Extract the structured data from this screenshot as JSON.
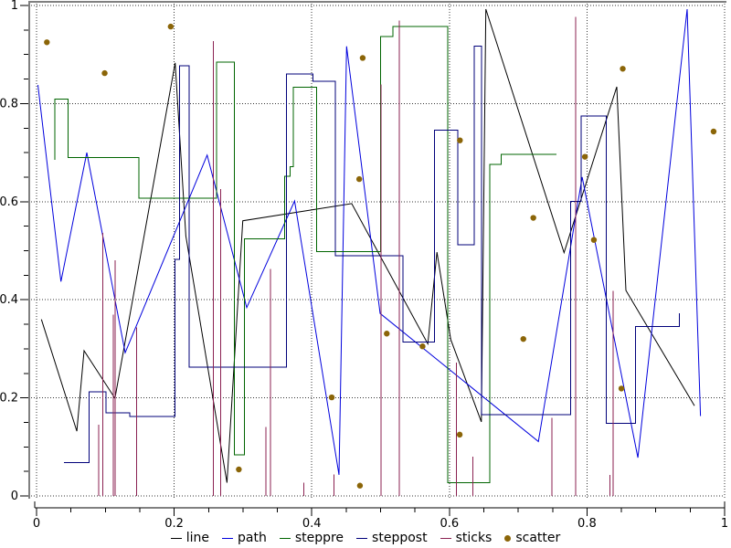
{
  "chart_data": {
    "type": "line",
    "title": "",
    "xlabel": "",
    "ylabel": "",
    "xlim": [
      0,
      1
    ],
    "ylim": [
      0,
      1
    ],
    "grid": "dotted",
    "legend_position": "bottom-center",
    "x_ticks": {
      "values": [
        0,
        0.2,
        0.4,
        0.6,
        0.8,
        1
      ],
      "labels": [
        "0",
        "0.2",
        "0.4",
        "0.6",
        "0.8",
        "1"
      ],
      "minor_step": 0.05
    },
    "y_ticks": {
      "values": [
        0,
        0.2,
        0.4,
        0.6,
        0.8,
        1
      ],
      "labels": [
        "0",
        "0.2",
        "0.4",
        "0.6",
        "0.8",
        "1"
      ],
      "minor_step": 0.05
    },
    "colors": {
      "plot_background": "#ffffff",
      "frame": "#808080",
      "grid": "#333333",
      "axis": "#000000",
      "tick_label": "#000000"
    },
    "series": [
      {
        "name": "line",
        "style": "line",
        "color": "#000000",
        "points": [
          [
            0.007,
            0.36
          ],
          [
            0.0585,
            0.132
          ],
          [
            0.069,
            0.296
          ],
          [
            0.114,
            0.199
          ],
          [
            0.2014,
            0.883
          ],
          [
            0.217,
            0.53
          ],
          [
            0.2767,
            0.027
          ],
          [
            0.2997,
            0.561
          ],
          [
            0.458,
            0.596
          ],
          [
            0.5687,
            0.31
          ],
          [
            0.582,
            0.497
          ],
          [
            0.602,
            0.319
          ],
          [
            0.6465,
            0.151
          ],
          [
            0.653,
            0.9925
          ],
          [
            0.7667,
            0.496
          ],
          [
            0.8433,
            0.8343
          ],
          [
            0.8566,
            0.419
          ],
          [
            0.9562,
            0.184
          ]
        ]
      },
      {
        "name": "path",
        "style": "path",
        "color": "#0000dd",
        "points": [
          [
            0.002,
            0.838
          ],
          [
            0.0355,
            0.437
          ],
          [
            0.073,
            0.7
          ],
          [
            0.1288,
            0.292
          ],
          [
            0.248,
            0.695
          ],
          [
            0.3054,
            0.384
          ],
          [
            0.375,
            0.6015
          ],
          [
            0.4396,
            0.043
          ],
          [
            0.4506,
            0.9167
          ],
          [
            0.4993,
            0.372
          ],
          [
            0.7294,
            0.111
          ],
          [
            0.793,
            0.65
          ],
          [
            0.874,
            0.078
          ],
          [
            0.9456,
            0.9925
          ],
          [
            0.965,
            0.163
          ]
        ]
      },
      {
        "name": "steppre",
        "style": "steppre",
        "color": "#006400",
        "points": [
          [
            0.0266,
            0.685
          ],
          [
            0.0461,
            0.809
          ],
          [
            0.1487,
            0.69
          ],
          [
            0.2616,
            0.607
          ],
          [
            0.2877,
            0.885
          ],
          [
            0.3024,
            0.084
          ],
          [
            0.3608,
            0.524
          ],
          [
            0.3682,
            0.652
          ],
          [
            0.3735,
            0.671
          ],
          [
            0.4072,
            0.833
          ],
          [
            0.5002,
            0.498
          ],
          [
            0.518,
            0.937
          ],
          [
            0.5976,
            0.957
          ],
          [
            0.6587,
            0.027
          ],
          [
            0.675,
            0.676
          ],
          [
            0.7556,
            0.696
          ]
        ]
      },
      {
        "name": "steppost",
        "style": "steppost",
        "color": "#00007a",
        "points": [
          [
            0.0398,
            0.0676
          ],
          [
            0.0765,
            0.2123
          ],
          [
            0.101,
            0.1695
          ],
          [
            0.1354,
            0.162
          ],
          [
            0.2014,
            0.482
          ],
          [
            0.208,
            0.877
          ],
          [
            0.2215,
            0.263
          ],
          [
            0.3631,
            0.86
          ],
          [
            0.4015,
            0.845
          ],
          [
            0.4343,
            0.49
          ],
          [
            0.5325,
            0.314
          ],
          [
            0.5786,
            0.746
          ],
          [
            0.6122,
            0.512
          ],
          [
            0.636,
            0.917
          ],
          [
            0.6465,
            0.166
          ],
          [
            0.776,
            0.601
          ],
          [
            0.7915,
            0.775
          ],
          [
            0.8278,
            0.148
          ],
          [
            0.8707,
            0.345
          ],
          [
            0.934,
            0.372
          ]
        ]
      },
      {
        "name": "sticks",
        "style": "sticks",
        "color": "#8b2252",
        "points": [
          [
            0.09,
            0.145
          ],
          [
            0.0965,
            0.536
          ],
          [
            0.1116,
            0.37
          ],
          [
            0.1142,
            0.48
          ],
          [
            0.1451,
            0.344
          ],
          [
            0.2567,
            0.927
          ],
          [
            0.2678,
            0.626
          ],
          [
            0.3333,
            0.141
          ],
          [
            0.34,
            0.463
          ],
          [
            0.3887,
            0.027
          ],
          [
            0.4325,
            0.044
          ],
          [
            0.5005,
            0.839
          ],
          [
            0.527,
            0.969
          ],
          [
            0.61,
            0.272
          ],
          [
            0.634,
            0.08
          ],
          [
            0.749,
            0.159
          ],
          [
            0.7835,
            0.977
          ],
          [
            0.8336,
            0.043
          ],
          [
            0.838,
            0.418
          ]
        ]
      },
      {
        "name": "scatter",
        "style": "scatter",
        "color": "#8b6508",
        "points": [
          [
            0.015,
            0.925
          ],
          [
            0.099,
            0.862
          ],
          [
            0.195,
            0.957
          ],
          [
            0.294,
            0.054
          ],
          [
            0.429,
            0.201
          ],
          [
            0.469,
            0.646
          ],
          [
            0.47,
            0.021
          ],
          [
            0.474,
            0.893
          ],
          [
            0.509,
            0.331
          ],
          [
            0.561,
            0.305
          ],
          [
            0.6153,
            0.725
          ],
          [
            0.615,
            0.125
          ],
          [
            0.7075,
            0.32
          ],
          [
            0.722,
            0.567
          ],
          [
            0.797,
            0.6915
          ],
          [
            0.81,
            0.522
          ],
          [
            0.85,
            0.219
          ],
          [
            0.852,
            0.871
          ],
          [
            0.984,
            0.743
          ]
        ]
      }
    ]
  }
}
